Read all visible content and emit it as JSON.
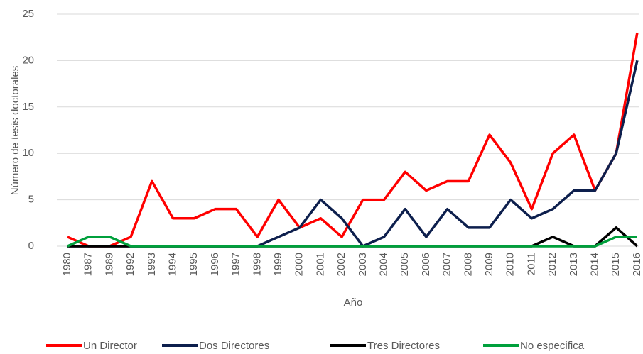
{
  "chart_data": {
    "type": "line",
    "x_label": "Año",
    "y_label": "Número de tesis doctorales",
    "categories": [
      "1980",
      "1987",
      "1989",
      "1992",
      "1993",
      "1994",
      "1995",
      "1996",
      "1997",
      "1998",
      "1999",
      "2000",
      "2001",
      "2002",
      "2003",
      "2004",
      "2005",
      "2006",
      "2007",
      "2008",
      "2009",
      "2010",
      "2011",
      "2012",
      "2013",
      "2014",
      "2015",
      "2016"
    ],
    "series": [
      {
        "name": "Un Director",
        "color": "#ff0000",
        "values": [
          1,
          0,
          0,
          1,
          7,
          3,
          3,
          4,
          4,
          1,
          5,
          2,
          3,
          1,
          5,
          5,
          8,
          6,
          7,
          7,
          12,
          9,
          4,
          10,
          12,
          6,
          10,
          23
        ]
      },
      {
        "name": "Dos Directores",
        "color": "#0d1f4d",
        "values": [
          0,
          0,
          0,
          0,
          0,
          0,
          0,
          0,
          0,
          0,
          1,
          2,
          5,
          3,
          0,
          1,
          4,
          1,
          4,
          2,
          2,
          5,
          3,
          4,
          6,
          6,
          10,
          20
        ]
      },
      {
        "name": "Tres Directores",
        "color": "#000000",
        "values": [
          0,
          0,
          0,
          0,
          0,
          0,
          0,
          0,
          0,
          0,
          0,
          0,
          0,
          0,
          0,
          0,
          0,
          0,
          0,
          0,
          0,
          0,
          0,
          1,
          0,
          0,
          2,
          0
        ]
      },
      {
        "name": "No especifica",
        "color": "#00a03c",
        "values": [
          0,
          1,
          1,
          0,
          0,
          0,
          0,
          0,
          0,
          0,
          0,
          0,
          0,
          0,
          0,
          0,
          0,
          0,
          0,
          0,
          0,
          0,
          0,
          0,
          0,
          0,
          1,
          1
        ]
      }
    ],
    "ylim": [
      0,
      25
    ],
    "yticks": [
      0,
      5,
      10,
      15,
      20,
      25
    ],
    "grid": true,
    "legend": "bottom"
  }
}
